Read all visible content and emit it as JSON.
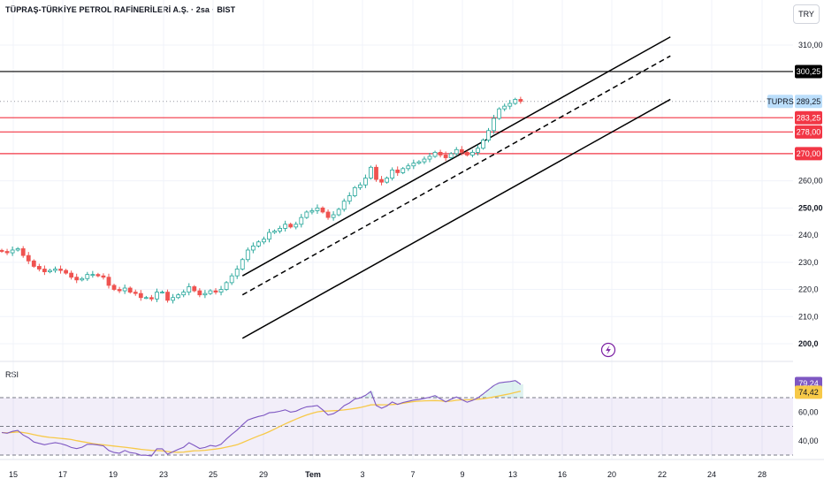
{
  "header": {
    "title": "TÜPRAŞ-TÜRKİYE PETROL RAFİNERİLERİ A.Ş. · 2sa · BIST",
    "currency": "TRY"
  },
  "rsi": {
    "title": "RSI",
    "last_value_label": "79,24",
    "ma_value_label": "74,42",
    "levels": [
      70,
      50,
      30
    ],
    "ticks": [
      "60,00",
      "40,00"
    ],
    "rsi_color": "#7e57c2",
    "ma_color": "#f7c948"
  },
  "colors": {
    "up": "#26a69a",
    "down": "#ef5350",
    "resistance": "#000000",
    "support": "#f23645",
    "symbol_tag": "#bbdefb"
  },
  "price_tags": [
    {
      "label": "300,25",
      "value": 300.25,
      "style": "black"
    },
    {
      "label": "289,25",
      "value": 289.25,
      "style": "last",
      "symbol": "TUPRS"
    },
    {
      "label": "283,25",
      "value": 283.25,
      "style": "red"
    },
    {
      "label": "278,00",
      "value": 278.0,
      "style": "red"
    },
    {
      "label": "270,00",
      "value": 270.0,
      "style": "red"
    }
  ],
  "chart_data": {
    "type": "candlestick",
    "symbol": "TUPRS",
    "timeframe": "2sa",
    "y_ticks": [
      {
        "label": "310,00",
        "value": 310,
        "bold": false
      },
      {
        "label": "260,00",
        "value": 260,
        "bold": false
      },
      {
        "label": "250,00",
        "value": 250,
        "bold": true
      },
      {
        "label": "240,0",
        "value": 240,
        "bold": false
      },
      {
        "label": "230,0",
        "value": 230,
        "bold": false
      },
      {
        "label": "220,0",
        "value": 220,
        "bold": false
      },
      {
        "label": "210,0",
        "value": 210,
        "bold": false
      },
      {
        "label": "200,0",
        "value": 200,
        "bold": true
      }
    ],
    "x_ticks": [
      {
        "label": "15",
        "bold": false
      },
      {
        "label": "17",
        "bold": false
      },
      {
        "label": "19",
        "bold": false
      },
      {
        "label": "23",
        "bold": false
      },
      {
        "label": "25",
        "bold": false
      },
      {
        "label": "29",
        "bold": false
      },
      {
        "label": "Tem",
        "bold": true
      },
      {
        "label": "3",
        "bold": false
      },
      {
        "label": "7",
        "bold": false
      },
      {
        "label": "9",
        "bold": false
      },
      {
        "label": "13",
        "bold": false
      },
      {
        "label": "16",
        "bold": false
      },
      {
        "label": "20",
        "bold": false
      },
      {
        "label": "22",
        "bold": false
      },
      {
        "label": "24",
        "bold": false
      },
      {
        "label": "28",
        "bold": false
      }
    ],
    "horizontal_levels": [
      {
        "value": 300.25,
        "kind": "resistance"
      },
      {
        "value": 283.25,
        "kind": "support"
      },
      {
        "value": 278.0,
        "kind": "support"
      },
      {
        "value": 270.0,
        "kind": "support"
      }
    ],
    "channel": {
      "upper": [
        [
          45,
          225
        ],
        [
          125,
          313
        ]
      ],
      "middle": [
        [
          45,
          218
        ],
        [
          125,
          306
        ]
      ],
      "lower": [
        [
          45,
          202
        ],
        [
          125,
          290
        ]
      ]
    },
    "closes": [
      234.0,
      233.5,
      234.5,
      235.0,
      232.5,
      230.5,
      228.5,
      227.5,
      226.5,
      227.0,
      227.5,
      227.0,
      226.0,
      224.5,
      223.5,
      224.0,
      225.5,
      225.5,
      225.0,
      224.5,
      221.5,
      220.0,
      219.5,
      220.5,
      219.0,
      218.5,
      217.0,
      217.0,
      216.5,
      219.0,
      219.0,
      216.0,
      217.0,
      218.0,
      219.0,
      221.0,
      219.5,
      218.0,
      218.5,
      219.5,
      219.0,
      220.0,
      222.5,
      225.0,
      227.5,
      231.0,
      234.5,
      236.0,
      237.5,
      238.5,
      241.0,
      241.5,
      242.5,
      244.0,
      243.0,
      244.0,
      246.5,
      248.5,
      249.0,
      250.0,
      248.5,
      246.5,
      247.5,
      249.5,
      252.5,
      254.5,
      257.5,
      258.5,
      261.0,
      265.0,
      260.5,
      259.5,
      261.0,
      264.0,
      263.0,
      264.5,
      265.5,
      266.5,
      267.0,
      268.0,
      269.0,
      270.5,
      269.5,
      268.5,
      270.0,
      271.5,
      270.5,
      269.5,
      270.5,
      272.0,
      275.0,
      278.5,
      283.0,
      286.5,
      287.5,
      288.5,
      290.0,
      289.25
    ],
    "rsi_values": [
      45.7,
      45.2,
      46.5,
      47.2,
      44.0,
      42.0,
      39.1,
      38.1,
      37.2,
      38.0,
      38.7,
      38.0,
      36.9,
      35.3,
      34.5,
      35.5,
      37.5,
      37.5,
      37.0,
      36.4,
      33.2,
      31.8,
      31.3,
      33.2,
      31.7,
      31.2,
      29.9,
      29.9,
      29.4,
      34.4,
      34.4,
      30.6,
      32.3,
      34.0,
      35.5,
      38.6,
      36.7,
      34.6,
      35.3,
      36.7,
      36.1,
      37.5,
      41.2,
      44.4,
      47.4,
      51.1,
      54.4,
      55.7,
      56.9,
      57.7,
      59.5,
      59.8,
      60.5,
      61.5,
      59.9,
      60.6,
      62.3,
      63.6,
      64.0,
      64.5,
      61.5,
      57.9,
      58.8,
      61.0,
      64.4,
      66.3,
      69.0,
      69.8,
      71.6,
      74.3,
      64.6,
      62.6,
      64.2,
      67.0,
      65.3,
      66.6,
      67.4,
      68.3,
      68.7,
      69.5,
      70.3,
      71.4,
      69.2,
      67.1,
      68.9,
      70.5,
      68.6,
      66.8,
      68.1,
      69.8,
      72.6,
      75.5,
      78.4,
      80.3,
      80.8,
      81.2,
      81.9,
      79.24
    ]
  }
}
